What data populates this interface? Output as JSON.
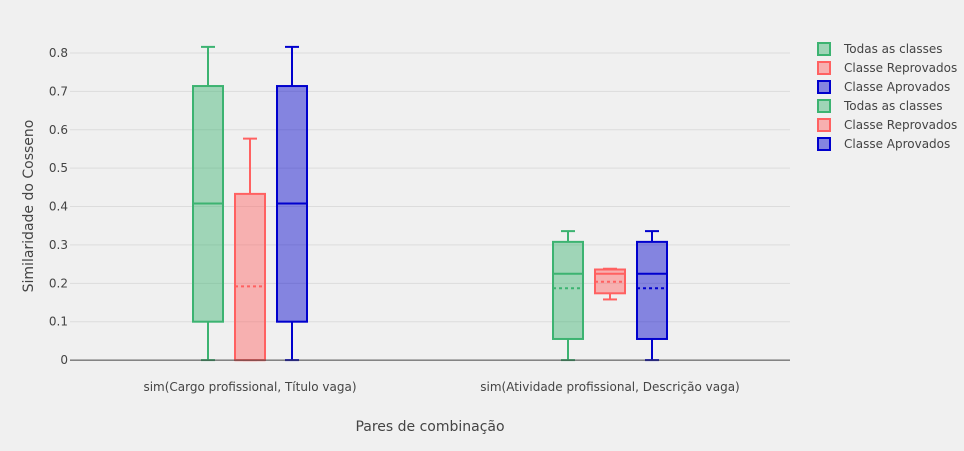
{
  "chart_data": {
    "type": "box",
    "xlabel": "Pares de combinação",
    "ylabel": "Similaridade  do Cosseno",
    "ylim": [
      -0.005,
      0.86
    ],
    "yticks": [
      0,
      0.1,
      0.2,
      0.3,
      0.4,
      0.5,
      0.6,
      0.7,
      0.8
    ],
    "ytick_labels": [
      "0",
      "0.1",
      "0.2",
      "0.3",
      "0.4",
      "0.5",
      "0.6",
      "0.7",
      "0.8"
    ],
    "categories": [
      "sim(Cargo profissional, Título vaga)",
      "sim(Atividade profissional, Descrição vaga)"
    ],
    "grid": true,
    "legend_position": "top-right",
    "series": [
      {
        "name": "Todas as classes",
        "color": "#3cb371",
        "boxes": [
          {
            "category": "sim(Cargo profissional, Título vaga)",
            "min": 0,
            "q1": 0.1,
            "median": 0.408,
            "q3": 0.714,
            "max": 0.816,
            "mean": 0.408
          },
          {
            "category": "sim(Atividade profissional, Descrição vaga)",
            "min": 0,
            "q1": 0.055,
            "median": 0.225,
            "q3": 0.308,
            "max": 0.336,
            "mean": 0.187
          }
        ]
      },
      {
        "name": "Classe Reprovados",
        "color": "#ff6161",
        "boxes": [
          {
            "category": "sim(Cargo profissional, Título vaga)",
            "min": 0,
            "q1": 0,
            "median": 0,
            "q3": 0.433,
            "max": 0.577,
            "mean": 0.192
          },
          {
            "category": "sim(Atividade profissional, Descrição vaga)",
            "min": 0.158,
            "q1": 0.174,
            "median": 0.225,
            "q3": 0.236,
            "max": 0.238,
            "mean": 0.204
          }
        ]
      },
      {
        "name": "Classe Aprovados",
        "color": "#0000cd",
        "boxes": [
          {
            "category": "sim(Cargo profissional, Título vaga)",
            "min": 0,
            "q1": 0.1,
            "median": 0.408,
            "q3": 0.714,
            "max": 0.816,
            "mean": 0.408
          },
          {
            "category": "sim(Atividade profissional, Descrição vaga)",
            "min": 0,
            "q1": 0.055,
            "median": 0.225,
            "q3": 0.308,
            "max": 0.336,
            "mean": 0.187
          }
        ]
      }
    ],
    "legend_entries": [
      {
        "name": "Todas as classes",
        "color": "#3cb371"
      },
      {
        "name": "Classe Reprovados",
        "color": "#ff6161"
      },
      {
        "name": "Classe Aprovados",
        "color": "#0000cd"
      },
      {
        "name": "Todas as classes",
        "color": "#3cb371"
      },
      {
        "name": "Classe Reprovados",
        "color": "#ff6161"
      },
      {
        "name": "Classe Aprovados",
        "color": "#0000cd"
      }
    ]
  }
}
